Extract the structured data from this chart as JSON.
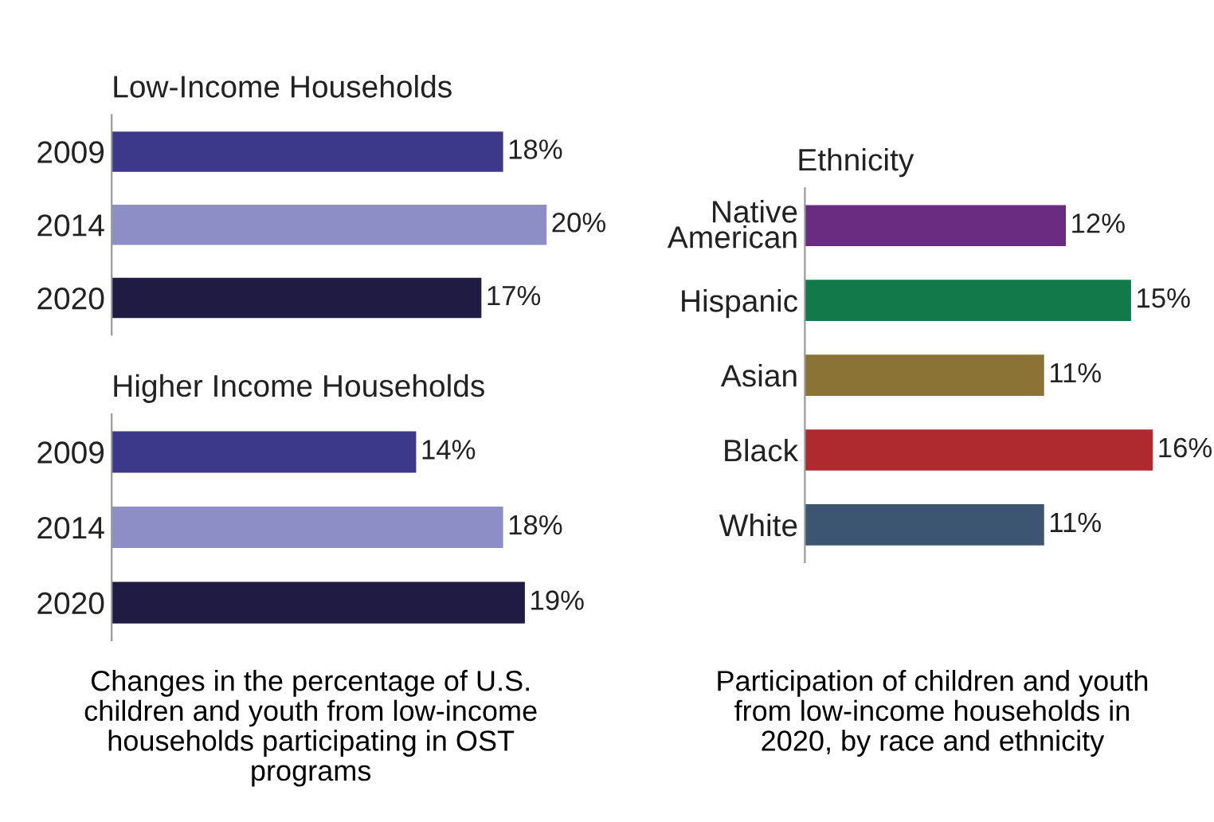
{
  "chart_data": [
    {
      "type": "bar",
      "orientation": "horizontal",
      "title": "Low-Income Households",
      "categories": [
        "2009",
        "2014",
        "2020"
      ],
      "values": [
        18,
        20,
        17
      ],
      "colors": [
        "#3c388a",
        "#8d8ec6",
        "#1f1b42"
      ],
      "value_labels": [
        "18%",
        "20%",
        "17%"
      ],
      "annotations": [
        "Changes in the percentage of U.S.\nchildren and youth from low-income\nhouseholds participating in OST\nprograms"
      ]
    },
    {
      "type": "bar",
      "orientation": "horizontal",
      "title": "Higher Income Households",
      "categories": [
        "2009",
        "2014",
        "2020"
      ],
      "values": [
        14,
        18,
        19
      ],
      "colors": [
        "#3c388a",
        "#8d8ec6",
        "#1f1b42"
      ],
      "value_labels": [
        "14%",
        "18%",
        "19%"
      ]
    },
    {
      "type": "bar",
      "orientation": "horizontal",
      "title": "Ethnicity",
      "categories": [
        "Native\nAmerican",
        "Hispanic",
        "Asian",
        "Black",
        "White"
      ],
      "values": [
        12,
        15,
        11,
        16,
        11
      ],
      "colors": [
        "#6a2c80",
        "#12794a",
        "#8a7334",
        "#ae2a2e",
        "#3c5570"
      ],
      "value_labels": [
        "12%",
        "15%",
        "11%",
        "16%",
        "11%"
      ],
      "annotations": [
        "Participation of children and youth\nfrom low-income households in\n2020, by race and ethnicity"
      ]
    }
  ]
}
